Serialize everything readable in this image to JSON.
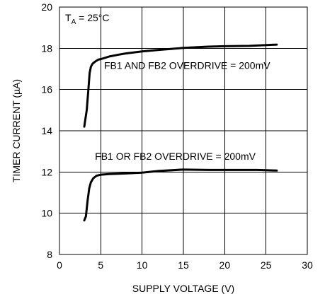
{
  "chart_data": {
    "type": "line",
    "title": "",
    "xlabel": "SUPPLY VOLTAGE (V)",
    "ylabel": "TIMER CURRENT (µA)",
    "xlim": [
      0,
      30
    ],
    "ylim": [
      8,
      20
    ],
    "xticks": [
      0,
      5,
      10,
      15,
      20,
      25,
      30
    ],
    "yticks": [
      8,
      10,
      12,
      14,
      16,
      18,
      20
    ],
    "grid": true,
    "annotations": {
      "condition_main": "T",
      "condition_sub": "A",
      "condition_rest": " = 25°C"
    },
    "series": [
      {
        "label": "FB1 AND FB2 OVERDRIVE = 200mV",
        "label_at": [
          5.4,
          17.0
        ],
        "x": [
          3.0,
          3.3,
          3.5,
          3.65,
          3.8,
          4.0,
          4.3,
          4.7,
          5.2,
          6.0,
          7.0,
          8.0,
          10.0,
          12.0,
          15.0,
          18.0,
          20.0,
          23.0,
          26.3
        ],
        "y": [
          14.2,
          15.0,
          16.0,
          16.8,
          17.1,
          17.25,
          17.35,
          17.45,
          17.5,
          17.6,
          17.68,
          17.75,
          17.85,
          17.92,
          18.02,
          18.08,
          18.1,
          18.12,
          18.18
        ]
      },
      {
        "label": "FB1 OR FB2 OVERDRIVE = 200mV",
        "label_at": [
          4.3,
          12.6
        ],
        "x": [
          3.0,
          3.2,
          3.4,
          3.6,
          3.8,
          4.1,
          4.5,
          5.0,
          6.0,
          8.0,
          10.0,
          12.0,
          15.0,
          18.0,
          20.0,
          22.0,
          24.0,
          26.3
        ],
        "y": [
          9.65,
          9.85,
          10.6,
          11.2,
          11.5,
          11.7,
          11.82,
          11.87,
          11.9,
          11.93,
          11.97,
          12.05,
          12.12,
          12.1,
          12.1,
          12.1,
          12.1,
          12.07
        ]
      }
    ]
  }
}
